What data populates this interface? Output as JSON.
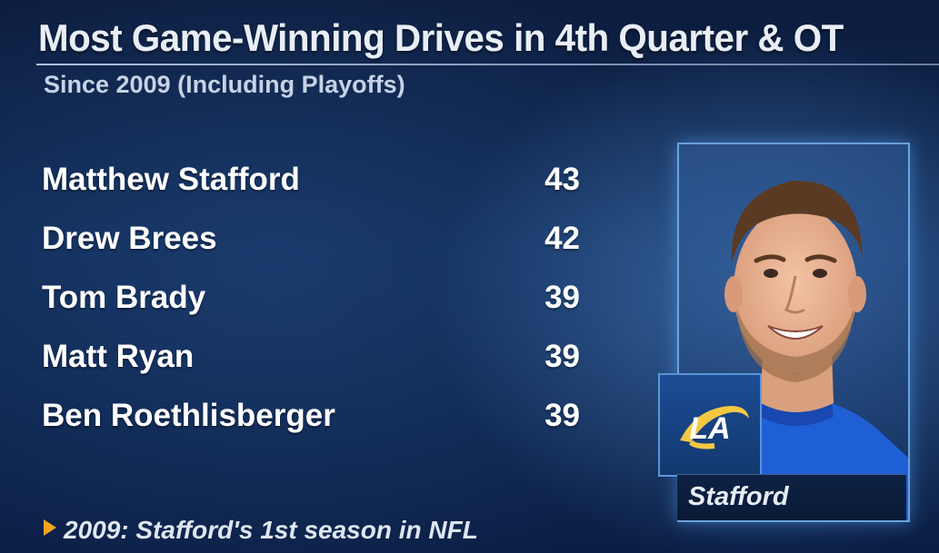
{
  "header": {
    "title": "Most Game-Winning Drives in 4th Quarter & OT",
    "subtitle": "Since 2009 (Including Playoffs)"
  },
  "leaders": [
    {
      "name": "Matthew Stafford",
      "value": "43"
    },
    {
      "name": "Drew Brees",
      "value": "42"
    },
    {
      "name": "Tom Brady",
      "value": "39"
    },
    {
      "name": "Matt Ryan",
      "value": "39"
    },
    {
      "name": "Ben Roethlisberger",
      "value": "39"
    }
  ],
  "footnote": "2009: Stafford's 1st season in NFL",
  "player_card": {
    "name_label": "Stafford",
    "logo_text": "LA",
    "logo_icon": "rams-logo-icon"
  },
  "colors": {
    "background": "#0f2a55",
    "accent_arrow": "#f3a51c",
    "jersey_blue": "#1f5fd6",
    "logo_gold": "#f5c842"
  }
}
